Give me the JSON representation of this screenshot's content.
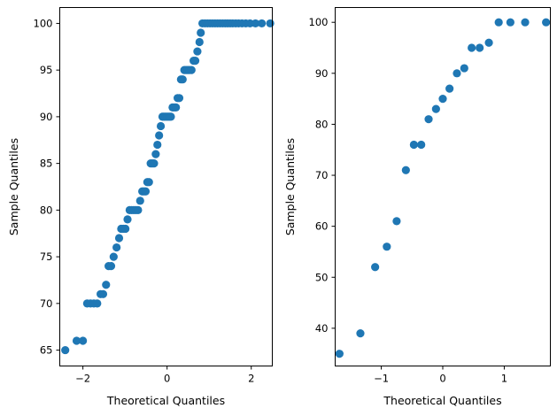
{
  "chart_data": [
    {
      "type": "scatter",
      "title": "",
      "xlabel": "Theoretical Quantiles",
      "ylabel": "Sample Quantiles",
      "xlim": [
        -2.55,
        2.5
      ],
      "ylim": [
        63.3,
        101.7
      ],
      "xticks": [
        -2,
        0,
        2
      ],
      "yticks": [
        65,
        70,
        75,
        80,
        85,
        90,
        95,
        100
      ],
      "grid": false,
      "marker_color": "#1f77b4",
      "points": [
        [
          -2.42,
          65
        ],
        [
          -2.15,
          66
        ],
        [
          -2.0,
          66
        ],
        [
          -1.9,
          70
        ],
        [
          -1.82,
          70
        ],
        [
          -1.74,
          70
        ],
        [
          -1.66,
          70
        ],
        [
          -1.58,
          71
        ],
        [
          -1.52,
          71
        ],
        [
          -1.45,
          72
        ],
        [
          -1.39,
          74
        ],
        [
          -1.33,
          74
        ],
        [
          -1.27,
          75
        ],
        [
          -1.2,
          76
        ],
        [
          -1.14,
          77
        ],
        [
          -1.09,
          78
        ],
        [
          -1.04,
          78
        ],
        [
          -0.99,
          78
        ],
        [
          -0.94,
          79
        ],
        [
          -0.89,
          80
        ],
        [
          -0.84,
          80
        ],
        [
          -0.79,
          80
        ],
        [
          -0.74,
          80
        ],
        [
          -0.69,
          80
        ],
        [
          -0.64,
          81
        ],
        [
          -0.59,
          82
        ],
        [
          -0.55,
          82
        ],
        [
          -0.51,
          82
        ],
        [
          -0.47,
          83
        ],
        [
          -0.43,
          83
        ],
        [
          -0.39,
          85
        ],
        [
          -0.35,
          85
        ],
        [
          -0.31,
          85
        ],
        [
          -0.27,
          86
        ],
        [
          -0.23,
          87
        ],
        [
          -0.19,
          88
        ],
        [
          -0.15,
          89
        ],
        [
          -0.11,
          90
        ],
        [
          -0.07,
          90
        ],
        [
          -0.03,
          90
        ],
        [
          0.01,
          90
        ],
        [
          0.05,
          90
        ],
        [
          0.09,
          90
        ],
        [
          0.13,
          91
        ],
        [
          0.17,
          91
        ],
        [
          0.21,
          91
        ],
        [
          0.25,
          92
        ],
        [
          0.29,
          92
        ],
        [
          0.33,
          94
        ],
        [
          0.37,
          94
        ],
        [
          0.41,
          95
        ],
        [
          0.45,
          95
        ],
        [
          0.49,
          95
        ],
        [
          0.53,
          95
        ],
        [
          0.58,
          95
        ],
        [
          0.63,
          96
        ],
        [
          0.67,
          96
        ],
        [
          0.72,
          97
        ],
        [
          0.77,
          98
        ],
        [
          0.8,
          99
        ],
        [
          0.84,
          100
        ],
        [
          0.9,
          100
        ],
        [
          0.96,
          100
        ],
        [
          1.02,
          100
        ],
        [
          1.08,
          100
        ],
        [
          1.14,
          100
        ],
        [
          1.2,
          100
        ],
        [
          1.26,
          100
        ],
        [
          1.32,
          100
        ],
        [
          1.38,
          100
        ],
        [
          1.44,
          100
        ],
        [
          1.5,
          100
        ],
        [
          1.56,
          100
        ],
        [
          1.63,
          100
        ],
        [
          1.7,
          100
        ],
        [
          1.78,
          100
        ],
        [
          1.87,
          100
        ],
        [
          1.97,
          100
        ],
        [
          2.1,
          100
        ],
        [
          2.25,
          100
        ],
        [
          2.45,
          100
        ]
      ]
    },
    {
      "type": "scatter",
      "title": "",
      "xlabel": "Theoretical Quantiles",
      "ylabel": "Sample Quantiles",
      "xlim": [
        -1.75,
        1.75
      ],
      "ylim": [
        32.6,
        102.9
      ],
      "xticks": [
        -1,
        0,
        1
      ],
      "yticks": [
        40,
        50,
        60,
        70,
        80,
        90,
        100
      ],
      "grid": false,
      "marker_color": "#1f77b4",
      "points": [
        [
          -1.68,
          35
        ],
        [
          -1.34,
          39
        ],
        [
          -1.1,
          52
        ],
        [
          -0.91,
          56
        ],
        [
          -0.75,
          61
        ],
        [
          -0.6,
          71
        ],
        [
          -0.47,
          76
        ],
        [
          -0.35,
          76
        ],
        [
          -0.23,
          81
        ],
        [
          -0.11,
          83
        ],
        [
          0.0,
          85
        ],
        [
          0.11,
          87
        ],
        [
          0.23,
          90
        ],
        [
          0.35,
          91
        ],
        [
          0.47,
          95
        ],
        [
          0.6,
          95
        ],
        [
          0.75,
          96
        ],
        [
          0.91,
          100
        ],
        [
          1.1,
          100
        ],
        [
          1.34,
          100
        ],
        [
          1.68,
          100
        ]
      ]
    }
  ]
}
